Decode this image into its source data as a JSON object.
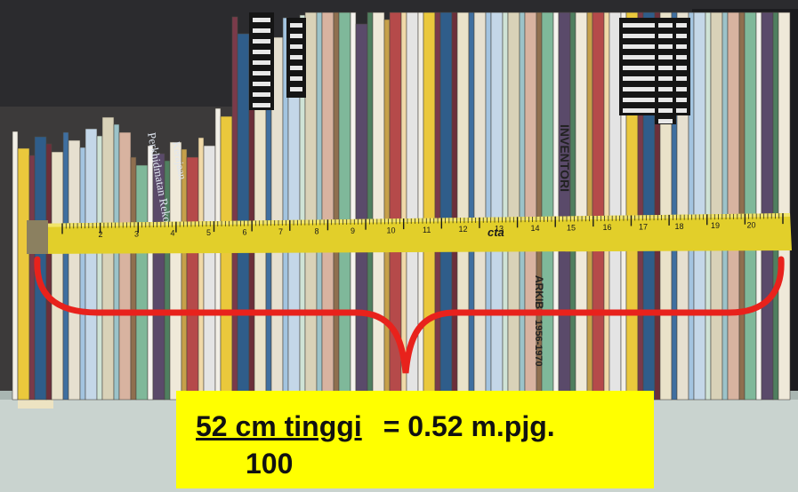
{
  "caption": {
    "numerator": "52 cm tinggi",
    "result": "= 0.52 m.pjg.",
    "denominator": "100"
  },
  "spines": {
    "left_label_1": "Perkhidmatan Rekod",
    "left_label_2": "Kerajaan",
    "right_label_1": "INVENTORI",
    "right_label_2": "ARKIB",
    "right_label_3": "1956-1970"
  },
  "tape": {
    "brand": "cta",
    "ticks": [
      "2",
      "3",
      "4",
      "5",
      "6",
      "7",
      "8",
      "9",
      "10",
      "11",
      "12",
      "13",
      "14",
      "15",
      "16",
      "17",
      "18",
      "19",
      "20"
    ]
  },
  "colors": {
    "brace": "#e8221c",
    "caption_bg": "#ffff00",
    "tape": "#e2cf2a"
  }
}
